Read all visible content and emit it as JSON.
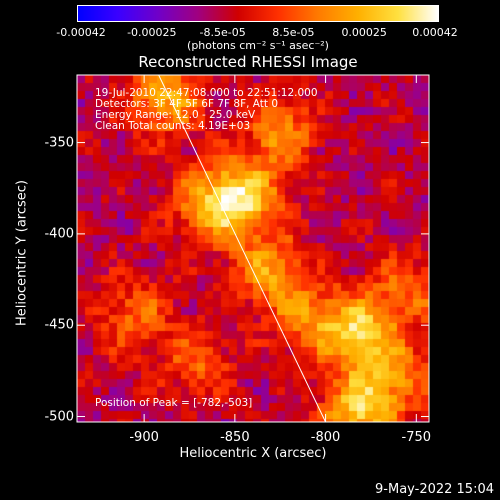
{
  "colorbar": {
    "colors": [
      "#0000ff",
      "#3a00ff",
      "#7000c8",
      "#a00080",
      "#d00000",
      "#ff3000",
      "#ff7a00",
      "#ffb000",
      "#ffe040",
      "#ffffff"
    ],
    "ticks": [
      "-0.00042",
      "-0.00025",
      "-8.5e-05",
      "8.5e-05",
      "0.00025",
      "0.00042"
    ],
    "unit": "(photons cm⁻² s⁻¹ asec⁻²)"
  },
  "chart_data": {
    "type": "heatmap",
    "title": "Reconstructed RHESSI Image",
    "xlabel": "Heliocentric X (arcsec)",
    "ylabel": "Heliocentric Y (arcsec)",
    "xlim": [
      -937,
      -743
    ],
    "ylim": [
      -503,
      -313
    ],
    "x_ticks": [
      -900,
      -850,
      -800,
      -750
    ],
    "y_ticks": [
      -350,
      -400,
      -450,
      -500
    ],
    "x_tick_labels": [
      "-900",
      "-850",
      "-800",
      "-750"
    ],
    "y_tick_labels": [
      "-350",
      "-400",
      "-450",
      "-500"
    ],
    "value_range": [
      -0.00042,
      0.00042
    ],
    "limb_line": [
      [
        -892,
        -313
      ],
      [
        -800,
        -503
      ]
    ],
    "bright_sources": [
      {
        "x": -888,
        "y": -325,
        "value": 0.00035
      },
      {
        "x": -865,
        "y": -385,
        "value": 0.0003
      },
      {
        "x": -845,
        "y": -380,
        "value": 0.00042
      },
      {
        "x": -825,
        "y": -345,
        "value": 0.00028
      },
      {
        "x": -832,
        "y": -420,
        "value": 0.0003
      },
      {
        "x": -810,
        "y": -445,
        "value": 0.00025
      },
      {
        "x": -782,
        "y": -455,
        "value": 0.00042
      },
      {
        "x": -782,
        "y": -498,
        "value": 0.00042
      },
      {
        "x": -755,
        "y": -430,
        "value": 0.00022
      },
      {
        "x": -905,
        "y": -445,
        "value": 0.00022
      },
      {
        "x": -870,
        "y": -470,
        "value": 0.0002
      },
      {
        "x": -760,
        "y": -478,
        "value": 0.00025
      }
    ],
    "annotations": [
      "19-Jul-2010 22:47:08.000 to 22:51:12.000",
      "Detectors: 3F 4F 5F 6F 7F 8F, Att 0",
      "Energy Range: 12.0 - 25.0 keV",
      "Clean     Total counts: 4.19E+03"
    ],
    "peak_label": "Position of Peak = [-782,-503]"
  },
  "footer": {
    "date": "9-May-2022 15:04"
  }
}
